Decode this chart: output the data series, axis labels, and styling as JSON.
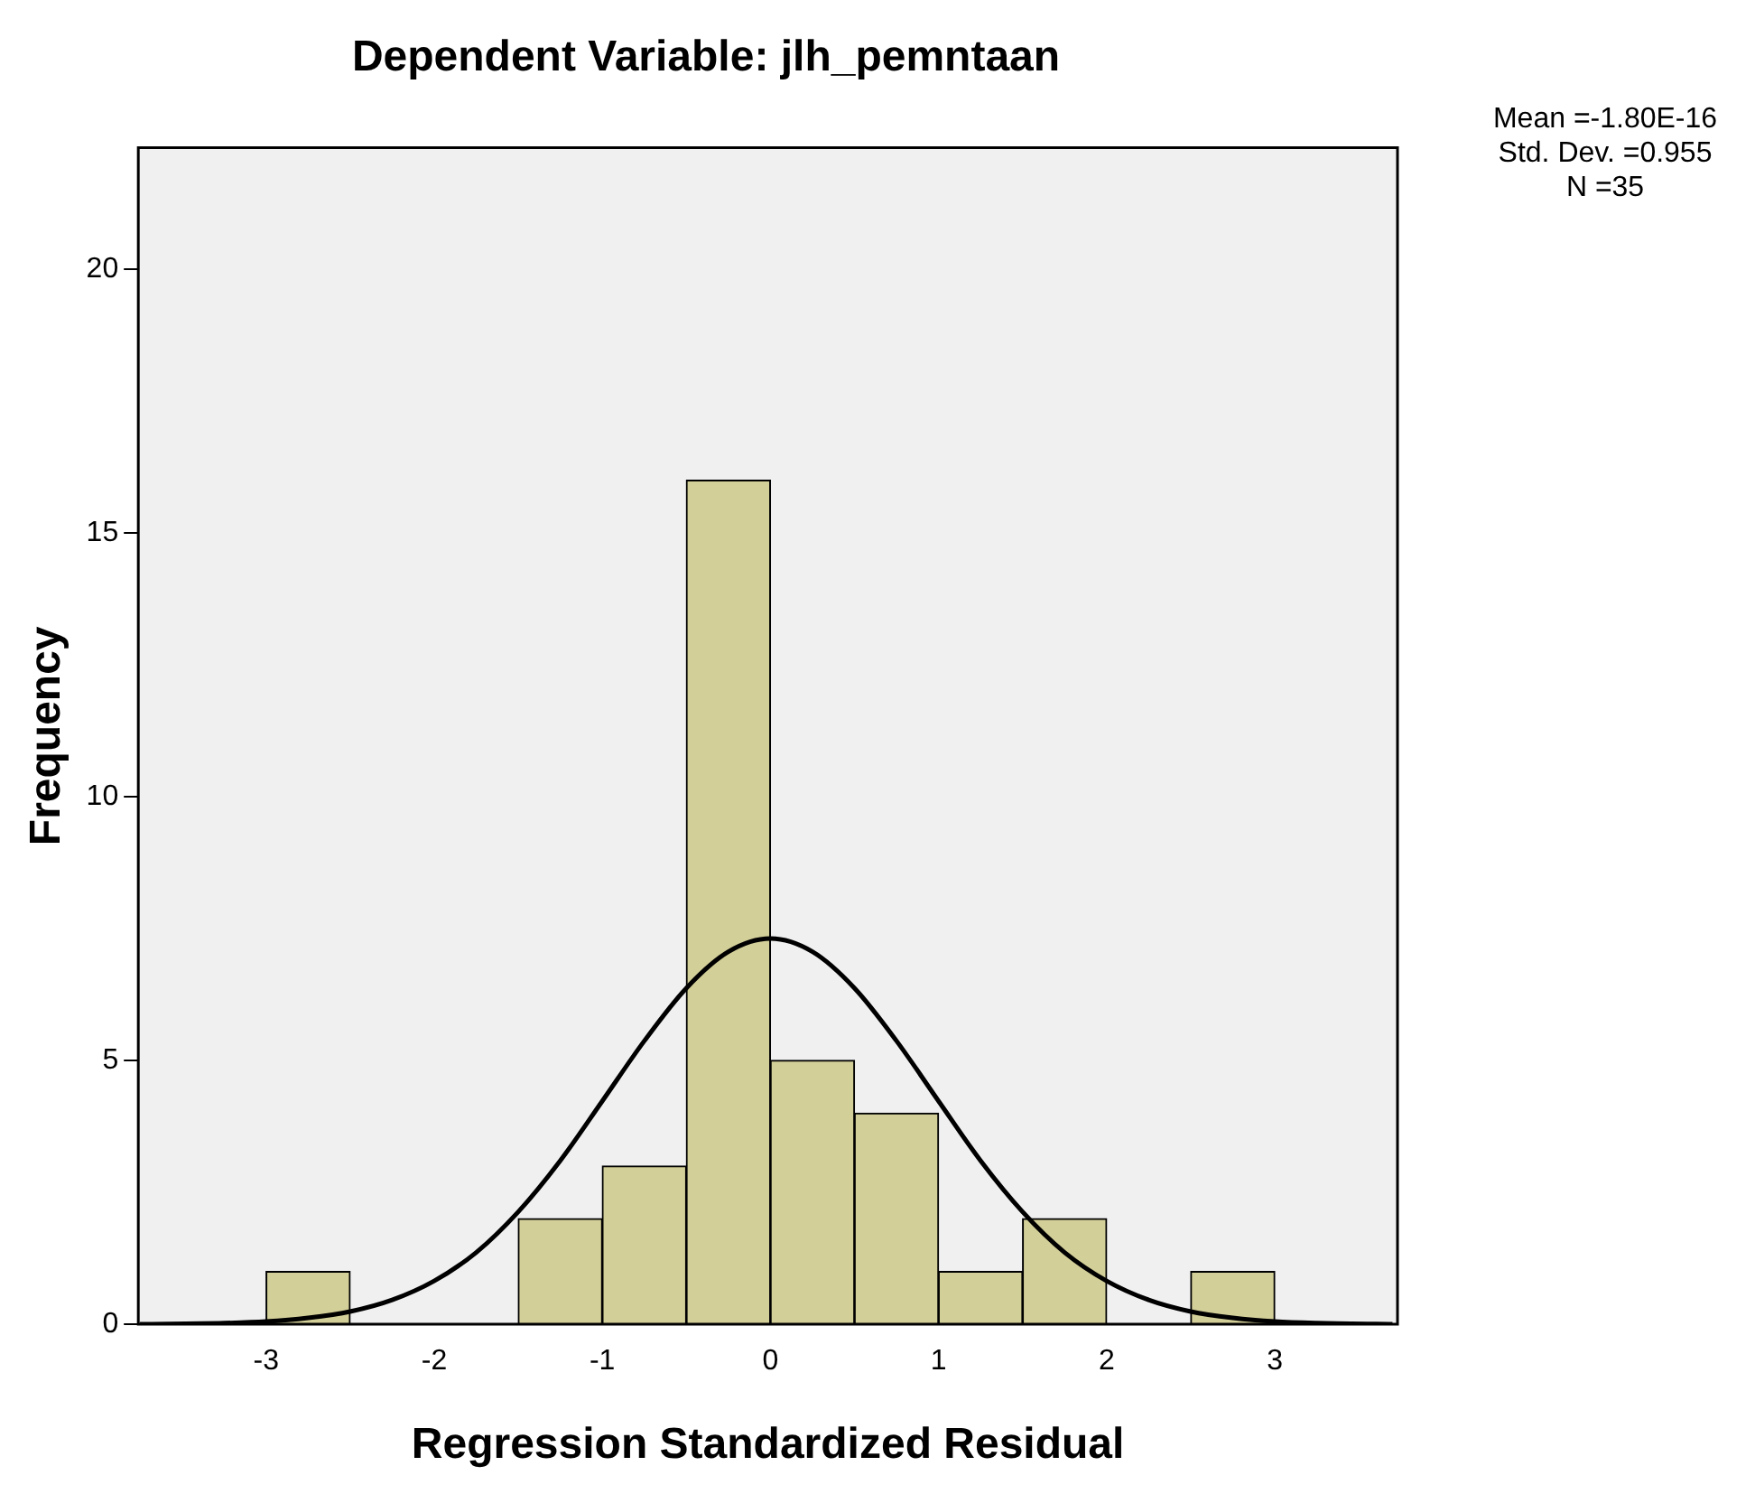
{
  "chart_data": {
    "type": "histogram",
    "title": "Dependent Variable: jlh_pemntaan",
    "xlabel": "Regression Standardized Residual",
    "ylabel": "Frequency",
    "bins": [
      -3,
      -2.5,
      -2,
      -1.5,
      -1,
      -0.5,
      0,
      0.5,
      1,
      1.5,
      2,
      2.5,
      3
    ],
    "values": [
      1,
      0,
      0,
      2,
      3,
      16,
      5,
      4,
      1,
      2,
      0,
      1
    ],
    "color": "#d3cf98",
    "series": [
      {
        "type": "line",
        "color": "#000000",
        "x": [
          -3.75,
          -3.25,
          -3,
          -2.75,
          -2.5,
          -2.25,
          -2,
          -1.75,
          -1.5,
          -1.25,
          -1,
          -0.75,
          -0.5,
          -0.25,
          0,
          0.25,
          0.5,
          0.75,
          1,
          1.25,
          1.5,
          1.75,
          2,
          2.25,
          2.5,
          2.75,
          3,
          3.25,
          3.7
        ],
        "values": [
          0,
          0.02,
          0.05,
          0.12,
          0.24,
          0.46,
          0.82,
          1.36,
          2.13,
          3.1,
          4.23,
          5.37,
          6.37,
          7.06,
          7.31,
          7.06,
          6.37,
          5.37,
          4.23,
          3.1,
          2.13,
          1.36,
          0.82,
          0.46,
          0.24,
          0.12,
          0.05,
          0.02,
          0
        ]
      }
    ],
    "xlim": [
      -3.76,
      3.73
    ],
    "xticks": [
      -3,
      -2,
      -1,
      0,
      1,
      2,
      3
    ],
    "ylim": [
      0,
      22.3
    ],
    "yticks": [
      0,
      5,
      10,
      15,
      20
    ],
    "grid": false,
    "legend": false,
    "marker": "none",
    "line_style": "solid",
    "annotations": [
      "Mean =-1.80E-16",
      "Std. Dev. =0.955",
      "N =35"
    ]
  }
}
